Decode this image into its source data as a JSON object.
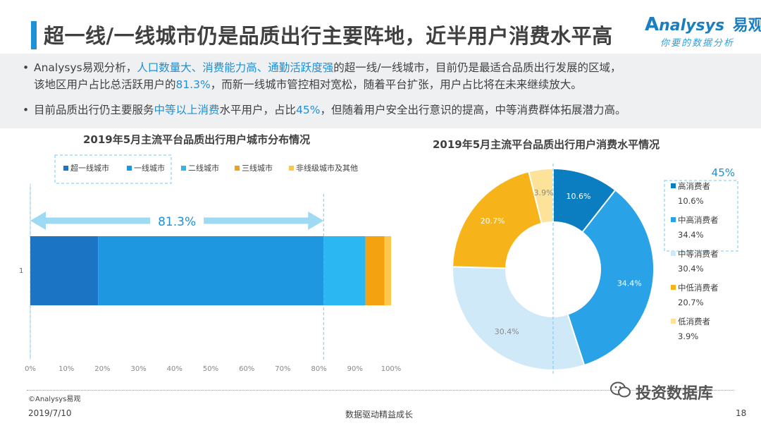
{
  "header": {
    "title": "超一线/一线城市仍是品质出行主要阵地，近半用户消费水平高",
    "logo_brand": "nalysys",
    "logo_brand_cn": "易观",
    "logo_slogan": "你要的数据分析"
  },
  "summary": {
    "b1_l1_a": "Analysys易观分析，",
    "b1_l1_hl": "人口数量大、消费能力高、通勤活跃度强",
    "b1_l1_b": "的超一线/一线城市，目前仍是最适合品质出行发展的区域，",
    "b1_l2_a": "该地区用户占比总活跃用户的",
    "b1_l2_hl": "81.3%",
    "b1_l2_b": "，而新一线城市管控相对宽松，随着平台扩张，用户占比将在未来继续放大。",
    "b2_a": "目前品质出行仍主要服务",
    "b2_hl1": "中等以上消费",
    "b2_b": "水平用户，占比",
    "b2_hl2": "45%",
    "b2_c": "，但随着用户安全出行意识的提高，中等消费群体拓展潜力高。"
  },
  "colors": {
    "c1": "#1c75c4",
    "c2": "#1f96e0",
    "c3": "#2ab7f2",
    "c4": "#f4a20f",
    "c5": "#fcc74b",
    "d1": "#0b7ec2",
    "d2": "#2aa2e8",
    "d3": "#cfe9f9",
    "d4": "#f7b41a",
    "d5": "#fde29a",
    "accent": "#1f8fd6",
    "dash": "#6fc8f0"
  },
  "chart_data": [
    {
      "type": "bar",
      "title": "2019年5月主流平台品质出行用户城市分布情况",
      "categories": [
        "1"
      ],
      "series": [
        {
          "name": "超一线城市",
          "values": [
            18.8
          ]
        },
        {
          "name": "一线城市",
          "values": [
            62.5
          ]
        },
        {
          "name": "二线城市",
          "values": [
            11.6
          ]
        },
        {
          "name": "三线城市",
          "values": [
            5.3
          ]
        },
        {
          "name": "非线级城市及其他",
          "values": [
            1.8
          ]
        }
      ],
      "xlim": [
        0,
        100
      ],
      "xticks": [
        "0%",
        "10%",
        "20%",
        "30%",
        "40%",
        "50%",
        "60%",
        "70%",
        "80%",
        "90%",
        "100%"
      ],
      "annotation": "81.3%",
      "annotation_value": 81.3,
      "stacked": true,
      "orientation": "horizontal"
    },
    {
      "type": "pie",
      "title": "2019年5月主流平台品质出行用户消费水平情况",
      "labels": [
        "高消费者",
        "中高消费者",
        "中等消费者",
        "中低消费者",
        "低消费者"
      ],
      "values": [
        10.6,
        34.4,
        30.4,
        20.7,
        3.9
      ],
      "value_labels": [
        "10.6%",
        "34.4%",
        "30.4%",
        "20.7%",
        "3.9%"
      ],
      "annotation": "45%",
      "donut": true
    }
  ],
  "footer": {
    "source": "©Analysys易观",
    "date": "2019/7/10",
    "slogan": "数据驱动精益成长",
    "page": "18",
    "watermark": "投资数据库"
  }
}
